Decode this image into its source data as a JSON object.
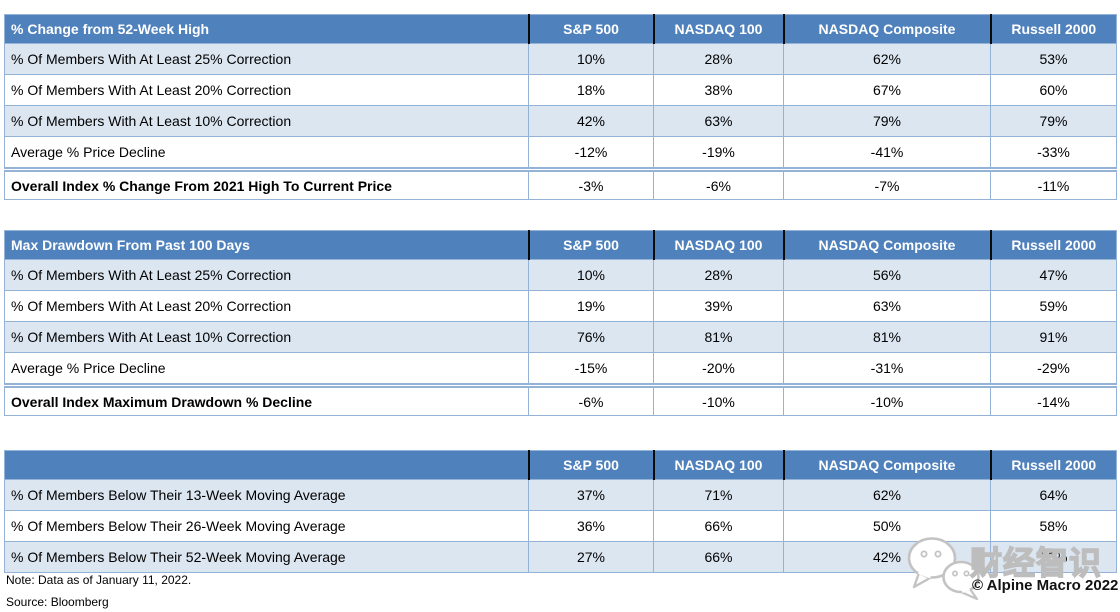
{
  "columns": [
    "S&P 500",
    "NASDAQ 100",
    "NASDAQ Composite",
    "Russell 2000"
  ],
  "chart_data": [
    {
      "type": "table",
      "title": "% Change from 52-Week High",
      "columns": [
        "S&P 500",
        "NASDAQ 100",
        "NASDAQ Composite",
        "Russell 2000"
      ],
      "rows": [
        {
          "label": "% Of Members With At Least 25% Correction",
          "values": [
            "10%",
            "28%",
            "62%",
            "53%"
          ]
        },
        {
          "label": "% Of Members With At Least 20% Correction",
          "values": [
            "18%",
            "38%",
            "67%",
            "60%"
          ]
        },
        {
          "label": "% Of Members With At Least 10% Correction",
          "values": [
            "42%",
            "63%",
            "79%",
            "79%"
          ]
        },
        {
          "label": "Average % Price Decline",
          "values": [
            "-12%",
            "-19%",
            "-41%",
            "-33%"
          ]
        },
        {
          "label": "Overall Index % Change From 2021 High To Current Price",
          "values": [
            "-3%",
            "-6%",
            "-7%",
            "-11%"
          ],
          "summary": true
        }
      ]
    },
    {
      "type": "table",
      "title": "Max Drawdown From Past 100 Days",
      "columns": [
        "S&P 500",
        "NASDAQ 100",
        "NASDAQ Composite",
        "Russell 2000"
      ],
      "rows": [
        {
          "label": "% Of Members With At Least 25% Correction",
          "values": [
            "10%",
            "28%",
            "56%",
            "47%"
          ]
        },
        {
          "label": "% Of Members With At Least 20% Correction",
          "values": [
            "19%",
            "39%",
            "63%",
            "59%"
          ]
        },
        {
          "label": "% Of Members With At Least 10% Correction",
          "values": [
            "76%",
            "81%",
            "81%",
            "91%"
          ]
        },
        {
          "label": "Average % Price Decline",
          "values": [
            "-15%",
            "-20%",
            "-31%",
            "-29%"
          ]
        },
        {
          "label": "Overall Index Maximum Drawdown % Decline",
          "values": [
            "-6%",
            "-10%",
            "-10%",
            "-14%"
          ],
          "summary": true
        }
      ]
    },
    {
      "type": "table",
      "title": "",
      "columns": [
        "S&P 500",
        "NASDAQ 100",
        "NASDAQ Composite",
        "Russell 2000"
      ],
      "rows": [
        {
          "label": "% Of Members Below Their 13-Week Moving Average",
          "values": [
            "37%",
            "71%",
            "62%",
            "64%"
          ]
        },
        {
          "label": "% Of Members Below Their 26-Week Moving Average",
          "values": [
            "36%",
            "66%",
            "50%",
            "58%"
          ]
        },
        {
          "label": "% Of Members Below Their 52-Week Moving Average",
          "values": [
            "27%",
            "66%",
            "42%",
            "50%"
          ]
        }
      ]
    }
  ],
  "footnotes": {
    "note": "Note: Data as of January 11, 2022.",
    "source": "Source: Bloomberg"
  },
  "watermark": {
    "logo": "wechat-icon",
    "text": "财经智识",
    "copyright": "© Alpine Macro 2022"
  },
  "colors": {
    "header_bg": "#4F81BD",
    "header_text": "#FFFFFF",
    "row_alt_bg": "#DCE6F1",
    "row_bg": "#FFFFFF",
    "border": "#95B3D7",
    "header_divider": "#000000",
    "text": "#000000",
    "watermark_outline": "#BDBDBD"
  }
}
